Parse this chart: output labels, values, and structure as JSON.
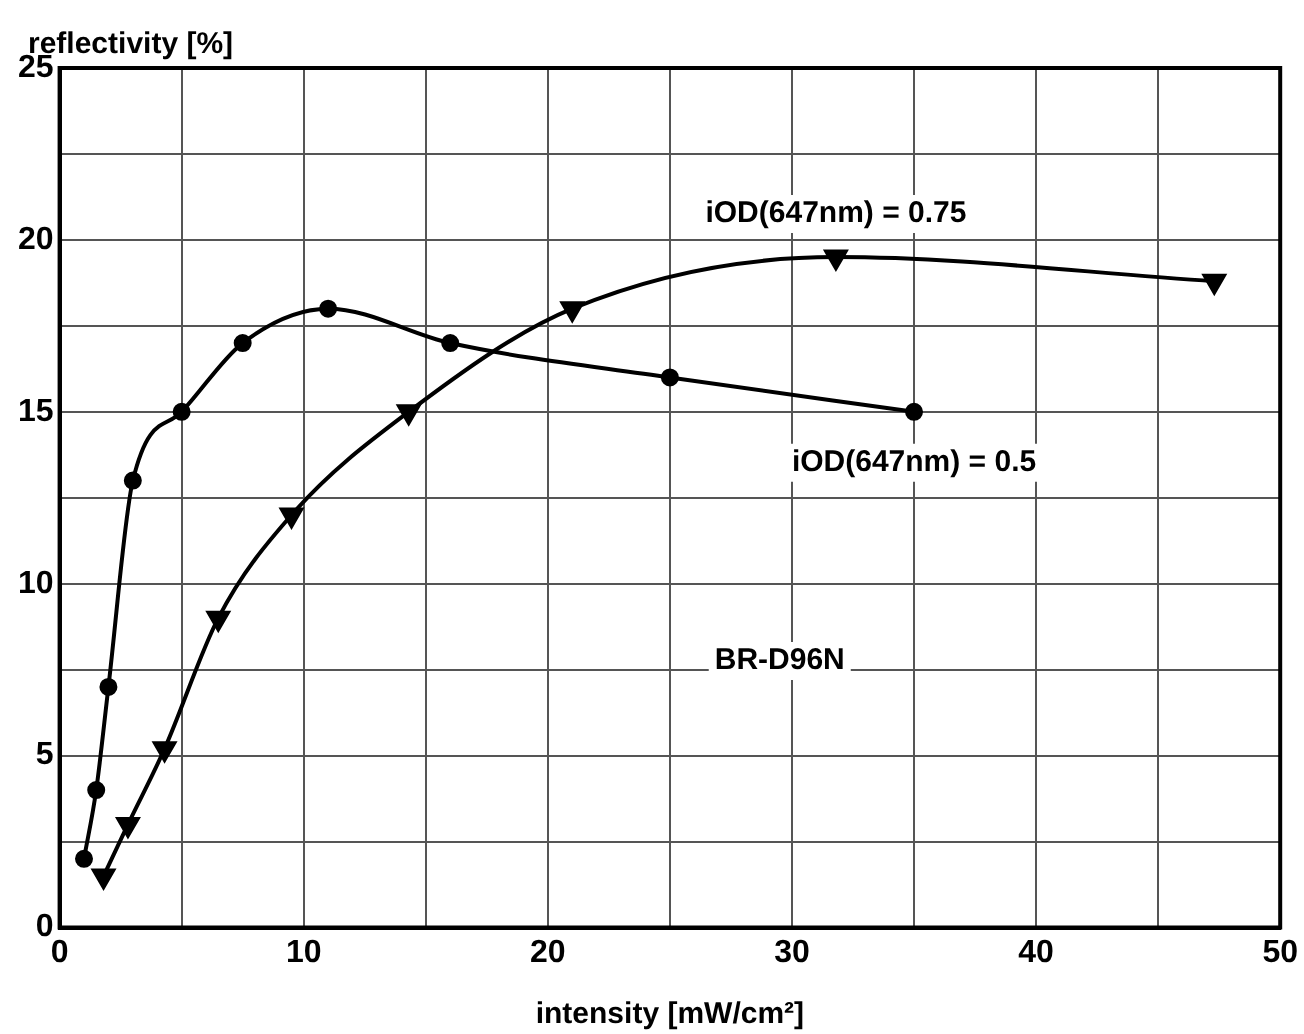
{
  "chart_data": {
    "type": "line",
    "xlabel": "intensity [mW/cm²]",
    "ylabel": "reflectivity [%]",
    "xlim": [
      0,
      50
    ],
    "ylim": [
      0,
      25
    ],
    "xticks": [
      0,
      {
        "value": 5,
        "label": null
      },
      10,
      {
        "value": 15,
        "label": null
      },
      20,
      {
        "value": 25,
        "label": null
      },
      30,
      {
        "value": 35,
        "label": null
      },
      40,
      {
        "value": 45,
        "label": null
      },
      50
    ],
    "yticks": [
      0,
      {
        "value": 2.5,
        "label": null
      },
      5,
      {
        "value": 7.5,
        "label": null
      },
      10,
      {
        "value": 12.5,
        "label": null
      },
      15,
      {
        "value": 17.5,
        "label": null
      },
      20,
      {
        "value": 22.5,
        "label": null
      },
      25
    ],
    "grid": true,
    "legend": false,
    "line_style": "solid",
    "series": [
      {
        "name": "iOD(647nm) = 0.5",
        "color": "#000000",
        "marker": "circle",
        "x": [
          1,
          1.5,
          2,
          3,
          5,
          7.5,
          11,
          16,
          25,
          35
        ],
        "values": [
          2,
          4,
          7,
          13,
          15,
          17,
          18,
          17,
          16,
          15
        ]
      },
      {
        "name": "iOD(647nm) = 0.75",
        "color": "#000000",
        "marker": "triangle",
        "x": [
          1.8,
          2.8,
          4.3,
          6.5,
          9.5,
          14.3,
          21,
          31.8,
          47.3
        ],
        "values": [
          1.5,
          3,
          5.2,
          9,
          12,
          15,
          18,
          19.5,
          18.8
        ]
      }
    ],
    "annotations": [
      "BR-D96N"
    ]
  }
}
